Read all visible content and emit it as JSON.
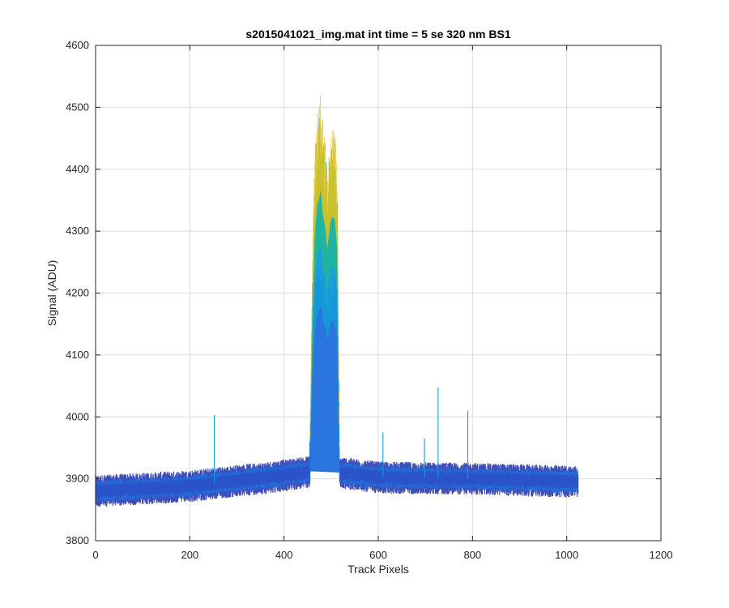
{
  "chart_data": {
    "type": "line",
    "title": "s2015041021_img.mat int time = 5 se  320 nm BS1",
    "xlabel": "Track Pixels",
    "ylabel": "Signal (ADU)",
    "xlim": [
      0,
      1200
    ],
    "ylim": [
      3800,
      4600
    ],
    "xticks": [
      0,
      200,
      400,
      600,
      800,
      1000,
      1200
    ],
    "yticks": [
      3800,
      3900,
      4000,
      4100,
      4200,
      4300,
      4400,
      4500,
      4600
    ],
    "xtick_labels": [
      "0",
      "200",
      "400",
      "600",
      "800",
      "1000",
      "1200"
    ],
    "ytick_labels": [
      "3800",
      "3900",
      "4000",
      "4100",
      "4200",
      "4300",
      "4400",
      "4500",
      "4600"
    ],
    "grid": true,
    "legend": "none",
    "colormap": "parula",
    "pixel_range": [
      0,
      1024
    ],
    "baseline_profile": [
      {
        "x": 0,
        "y": 3880
      },
      {
        "x": 200,
        "y": 3888
      },
      {
        "x": 400,
        "y": 3905
      },
      {
        "x": 460,
        "y": 3912
      },
      {
        "x": 520,
        "y": 3910
      },
      {
        "x": 600,
        "y": 3902
      },
      {
        "x": 800,
        "y": 3900
      },
      {
        "x": 1024,
        "y": 3895
      }
    ],
    "peak_region": {
      "x_start": 455,
      "x_end": 518,
      "max_signal": 4525
    },
    "peak_envelope": [
      {
        "x": 455,
        "y": 3960
      },
      {
        "x": 460,
        "y": 4250
      },
      {
        "x": 465,
        "y": 4430
      },
      {
        "x": 470,
        "y": 4490
      },
      {
        "x": 475,
        "y": 4510
      },
      {
        "x": 478,
        "y": 4525
      },
      {
        "x": 483,
        "y": 4470
      },
      {
        "x": 488,
        "y": 4440
      },
      {
        "x": 492,
        "y": 4400
      },
      {
        "x": 497,
        "y": 4450
      },
      {
        "x": 502,
        "y": 4465
      },
      {
        "x": 508,
        "y": 4460
      },
      {
        "x": 513,
        "y": 4400
      },
      {
        "x": 518,
        "y": 3920
      }
    ],
    "spikes": [
      {
        "x": 252,
        "y": 4003
      },
      {
        "x": 610,
        "y": 3975
      },
      {
        "x": 698,
        "y": 3965
      },
      {
        "x": 727,
        "y": 4048
      },
      {
        "x": 790,
        "y": 4010
      }
    ],
    "colors": {
      "trace_dark": "#2a3ab0",
      "trace_mid": "#1f6fdc",
      "trace_light": "#139ad8",
      "peak_teal": "#1fb59e",
      "peak_yellow": "#e6c21a",
      "grid": "#dcdcdc",
      "axis": "#262626"
    }
  }
}
